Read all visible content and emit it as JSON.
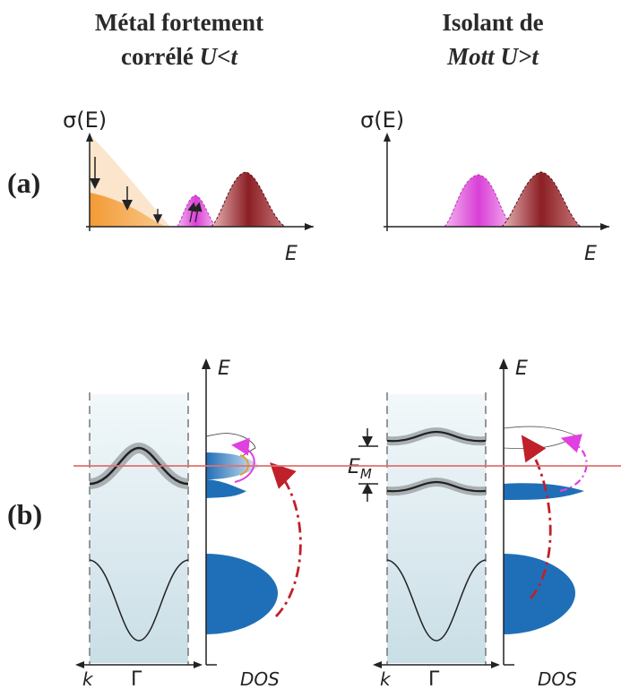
{
  "left_title": {
    "line1": "Métal fortement",
    "line2a": "corrélé",
    "line2b": "U<t"
  },
  "right_title": {
    "line1": "Isolant de",
    "line2a": "Mott",
    "line2b": "U>t"
  },
  "panels": {
    "a": "(a)",
    "b": "(b)"
  },
  "axes": {
    "sigma": "σ(E)",
    "energy": "E",
    "k": "k",
    "gamma": "Γ",
    "dos": "DOS",
    "mott_gap": "E",
    "mott_gap_sub": "M"
  },
  "colors": {
    "orange": "#f4a34a",
    "orange_light": "#fbe3c7",
    "magenta": "#e26ae0",
    "dark_red": "#8b1f24",
    "blue": "#1f6fb8",
    "fermi_line": "#e07070",
    "arrow_red": "#c0202a",
    "band_bg": "#d6e8ee"
  }
}
